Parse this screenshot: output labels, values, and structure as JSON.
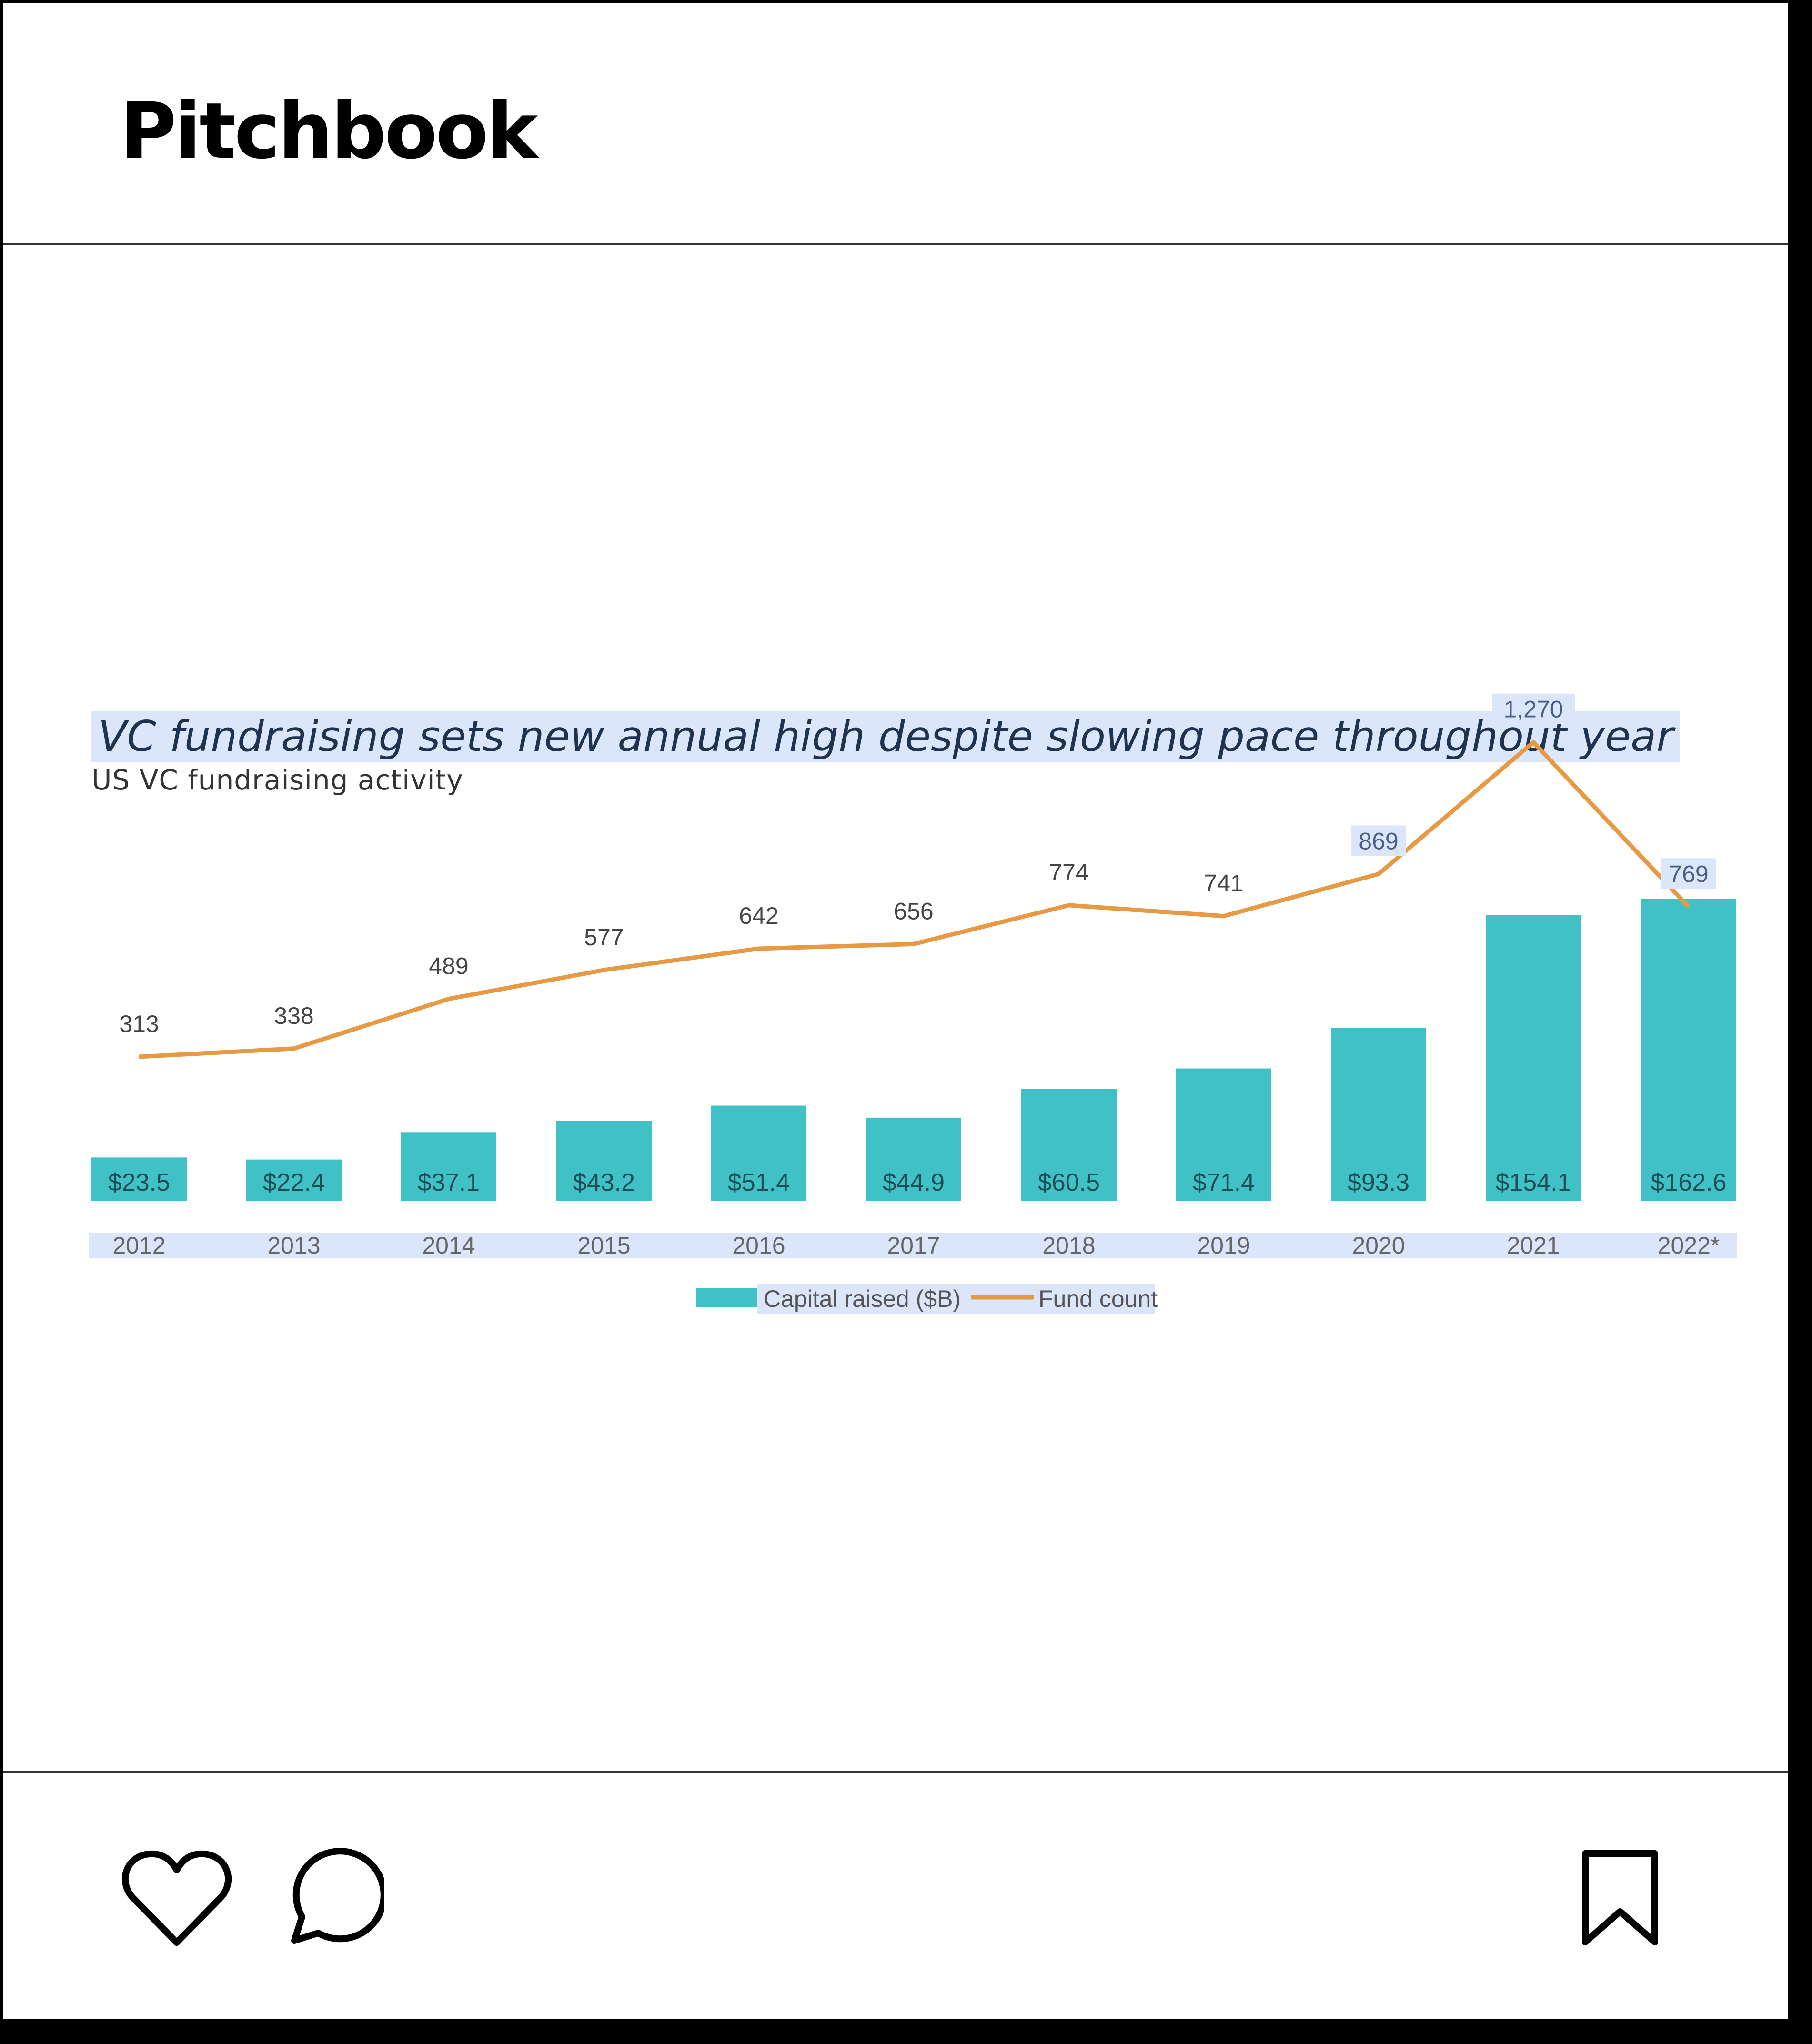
{
  "post": {
    "account_name": "Pitchbook",
    "actions": {
      "like_icon": "heart-icon",
      "comment_icon": "speech-bubble-icon",
      "save_icon": "bookmark-icon"
    }
  },
  "colors": {
    "bar": "#3fc1c6",
    "line": "#e59a43",
    "label_highlight": "#dbe6fb",
    "title_text": "#1f3350"
  },
  "chart_data": {
    "type": "bar",
    "title": "VC fundraising sets new annual high despite slowing pace throughout year",
    "subtitle": "US VC fundraising activity",
    "categories": [
      "2012",
      "2013",
      "2014",
      "2015",
      "2016",
      "2017",
      "2018",
      "2019",
      "2020",
      "2021",
      "2022*"
    ],
    "series": [
      {
        "name": "Capital raised ($B)",
        "type": "bar",
        "values": [
          23.5,
          22.4,
          37.1,
          43.2,
          51.4,
          44.9,
          60.5,
          71.4,
          93.3,
          154.1,
          162.6
        ],
        "labels": [
          "$23.5",
          "$22.4",
          "$37.1",
          "$43.2",
          "$51.4",
          "$44.9",
          "$60.5",
          "$71.4",
          "$93.3",
          "$154.1",
          "$162.6"
        ]
      },
      {
        "name": "Fund count",
        "type": "line",
        "values": [
          313,
          338,
          489,
          577,
          642,
          656,
          774,
          741,
          869,
          1270,
          769
        ],
        "labels": [
          "313",
          "338",
          "489",
          "577",
          "642",
          "656",
          "774",
          "741",
          "869",
          "1,270",
          "769"
        ]
      }
    ],
    "legend": "bottom-center",
    "grid": false
  }
}
